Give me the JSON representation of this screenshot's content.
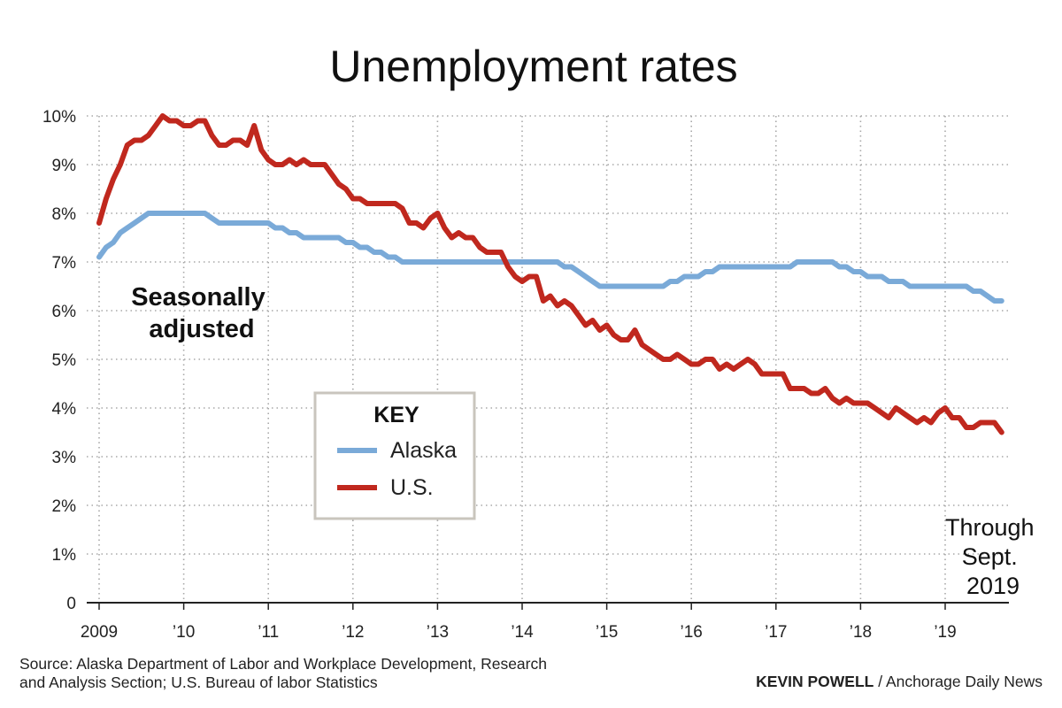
{
  "chart_data": {
    "type": "line",
    "title": "Unemployment rates",
    "annotation": [
      "Seasonally",
      "adjusted"
    ],
    "note": [
      "Through",
      "Sept.",
      "2019"
    ],
    "xlabel": "",
    "ylabel": "",
    "x_tick_labels": [
      "2009",
      "’10",
      "’11",
      "’12",
      "’13",
      "’14",
      "’15",
      "’16",
      "’17",
      "’18",
      "’19"
    ],
    "x_ticks": [
      2009,
      2010,
      2011,
      2012,
      2013,
      2014,
      2015,
      2016,
      2017,
      2018,
      2019
    ],
    "xlim": [
      2009,
      2019.75
    ],
    "y_tick_labels": [
      "0",
      "1%",
      "2%",
      "3%",
      "4%",
      "5%",
      "6%",
      "7%",
      "8%",
      "9%",
      "10%"
    ],
    "y_ticks": [
      0,
      1,
      2,
      3,
      4,
      5,
      6,
      7,
      8,
      9,
      10
    ],
    "ylim": [
      0,
      10
    ],
    "grid": "dotted",
    "legend": {
      "title": "KEY",
      "placement": "center"
    },
    "series": [
      {
        "name": "Alaska",
        "color": "#7aaad8",
        "points": [
          [
            2009.0,
            7.1
          ],
          [
            2009.083,
            7.3
          ],
          [
            2009.167,
            7.4
          ],
          [
            2009.25,
            7.6
          ],
          [
            2009.333,
            7.7
          ],
          [
            2009.417,
            7.8
          ],
          [
            2009.5,
            7.9
          ],
          [
            2009.583,
            8.0
          ],
          [
            2009.75,
            8.0
          ],
          [
            2010.0,
            8.0
          ],
          [
            2010.25,
            8.0
          ],
          [
            2010.333,
            7.9
          ],
          [
            2010.417,
            7.8
          ],
          [
            2010.75,
            7.8
          ],
          [
            2011.0,
            7.8
          ],
          [
            2011.083,
            7.7
          ],
          [
            2011.167,
            7.7
          ],
          [
            2011.25,
            7.6
          ],
          [
            2011.333,
            7.6
          ],
          [
            2011.417,
            7.5
          ],
          [
            2011.833,
            7.5
          ],
          [
            2011.917,
            7.4
          ],
          [
            2012.0,
            7.4
          ],
          [
            2012.083,
            7.3
          ],
          [
            2012.167,
            7.3
          ],
          [
            2012.25,
            7.2
          ],
          [
            2012.333,
            7.2
          ],
          [
            2012.417,
            7.1
          ],
          [
            2012.5,
            7.1
          ],
          [
            2012.583,
            7.0
          ],
          [
            2013.0,
            7.0
          ],
          [
            2014.0,
            7.0
          ],
          [
            2014.417,
            7.0
          ],
          [
            2014.5,
            6.9
          ],
          [
            2014.583,
            6.9
          ],
          [
            2014.667,
            6.8
          ],
          [
            2014.75,
            6.7
          ],
          [
            2014.833,
            6.6
          ],
          [
            2014.917,
            6.5
          ],
          [
            2015.0,
            6.5
          ],
          [
            2015.667,
            6.5
          ],
          [
            2015.75,
            6.6
          ],
          [
            2015.833,
            6.6
          ],
          [
            2015.917,
            6.7
          ],
          [
            2016.083,
            6.7
          ],
          [
            2016.167,
            6.8
          ],
          [
            2016.25,
            6.8
          ],
          [
            2016.333,
            6.9
          ],
          [
            2016.5,
            6.9
          ],
          [
            2017.0,
            6.9
          ],
          [
            2017.167,
            6.9
          ],
          [
            2017.25,
            7.0
          ],
          [
            2017.667,
            7.0
          ],
          [
            2017.75,
            6.9
          ],
          [
            2017.833,
            6.9
          ],
          [
            2017.917,
            6.8
          ],
          [
            2018.0,
            6.8
          ],
          [
            2018.083,
            6.7
          ],
          [
            2018.25,
            6.7
          ],
          [
            2018.333,
            6.6
          ],
          [
            2018.5,
            6.6
          ],
          [
            2018.583,
            6.5
          ],
          [
            2019.25,
            6.5
          ],
          [
            2019.333,
            6.4
          ],
          [
            2019.417,
            6.4
          ],
          [
            2019.5,
            6.3
          ],
          [
            2019.583,
            6.2
          ],
          [
            2019.667,
            6.2
          ]
        ]
      },
      {
        "name": "U.S.",
        "color": "#c0281e",
        "points": [
          [
            2009.0,
            7.8
          ],
          [
            2009.083,
            8.3
          ],
          [
            2009.167,
            8.7
          ],
          [
            2009.25,
            9.0
          ],
          [
            2009.333,
            9.4
          ],
          [
            2009.417,
            9.5
          ],
          [
            2009.5,
            9.5
          ],
          [
            2009.583,
            9.6
          ],
          [
            2009.667,
            9.8
          ],
          [
            2009.75,
            10.0
          ],
          [
            2009.833,
            9.9
          ],
          [
            2009.917,
            9.9
          ],
          [
            2010.0,
            9.8
          ],
          [
            2010.083,
            9.8
          ],
          [
            2010.167,
            9.9
          ],
          [
            2010.25,
            9.9
          ],
          [
            2010.333,
            9.6
          ],
          [
            2010.417,
            9.4
          ],
          [
            2010.5,
            9.4
          ],
          [
            2010.583,
            9.5
          ],
          [
            2010.667,
            9.5
          ],
          [
            2010.75,
            9.4
          ],
          [
            2010.833,
            9.8
          ],
          [
            2010.917,
            9.3
          ],
          [
            2011.0,
            9.1
          ],
          [
            2011.083,
            9.0
          ],
          [
            2011.167,
            9.0
          ],
          [
            2011.25,
            9.1
          ],
          [
            2011.333,
            9.0
          ],
          [
            2011.417,
            9.1
          ],
          [
            2011.5,
            9.0
          ],
          [
            2011.583,
            9.0
          ],
          [
            2011.667,
            9.0
          ],
          [
            2011.75,
            8.8
          ],
          [
            2011.833,
            8.6
          ],
          [
            2011.917,
            8.5
          ],
          [
            2012.0,
            8.3
          ],
          [
            2012.083,
            8.3
          ],
          [
            2012.167,
            8.2
          ],
          [
            2012.25,
            8.2
          ],
          [
            2012.333,
            8.2
          ],
          [
            2012.417,
            8.2
          ],
          [
            2012.5,
            8.2
          ],
          [
            2012.583,
            8.1
          ],
          [
            2012.667,
            7.8
          ],
          [
            2012.75,
            7.8
          ],
          [
            2012.833,
            7.7
          ],
          [
            2012.917,
            7.9
          ],
          [
            2013.0,
            8.0
          ],
          [
            2013.083,
            7.7
          ],
          [
            2013.167,
            7.5
          ],
          [
            2013.25,
            7.6
          ],
          [
            2013.333,
            7.5
          ],
          [
            2013.417,
            7.5
          ],
          [
            2013.5,
            7.3
          ],
          [
            2013.583,
            7.2
          ],
          [
            2013.667,
            7.2
          ],
          [
            2013.75,
            7.2
          ],
          [
            2013.833,
            6.9
          ],
          [
            2013.917,
            6.7
          ],
          [
            2014.0,
            6.6
          ],
          [
            2014.083,
            6.7
          ],
          [
            2014.167,
            6.7
          ],
          [
            2014.25,
            6.2
          ],
          [
            2014.333,
            6.3
          ],
          [
            2014.417,
            6.1
          ],
          [
            2014.5,
            6.2
          ],
          [
            2014.583,
            6.1
          ],
          [
            2014.667,
            5.9
          ],
          [
            2014.75,
            5.7
          ],
          [
            2014.833,
            5.8
          ],
          [
            2014.917,
            5.6
          ],
          [
            2015.0,
            5.7
          ],
          [
            2015.083,
            5.5
          ],
          [
            2015.167,
            5.4
          ],
          [
            2015.25,
            5.4
          ],
          [
            2015.333,
            5.6
          ],
          [
            2015.417,
            5.3
          ],
          [
            2015.5,
            5.2
          ],
          [
            2015.583,
            5.1
          ],
          [
            2015.667,
            5.0
          ],
          [
            2015.75,
            5.0
          ],
          [
            2015.833,
            5.1
          ],
          [
            2015.917,
            5.0
          ],
          [
            2016.0,
            4.9
          ],
          [
            2016.083,
            4.9
          ],
          [
            2016.167,
            5.0
          ],
          [
            2016.25,
            5.0
          ],
          [
            2016.333,
            4.8
          ],
          [
            2016.417,
            4.9
          ],
          [
            2016.5,
            4.8
          ],
          [
            2016.583,
            4.9
          ],
          [
            2016.667,
            5.0
          ],
          [
            2016.75,
            4.9
          ],
          [
            2016.833,
            4.7
          ],
          [
            2016.917,
            4.7
          ],
          [
            2017.0,
            4.7
          ],
          [
            2017.083,
            4.7
          ],
          [
            2017.167,
            4.4
          ],
          [
            2017.25,
            4.4
          ],
          [
            2017.333,
            4.4
          ],
          [
            2017.417,
            4.3
          ],
          [
            2017.5,
            4.3
          ],
          [
            2017.583,
            4.4
          ],
          [
            2017.667,
            4.2
          ],
          [
            2017.75,
            4.1
          ],
          [
            2017.833,
            4.2
          ],
          [
            2017.917,
            4.1
          ],
          [
            2018.0,
            4.1
          ],
          [
            2018.083,
            4.1
          ],
          [
            2018.167,
            4.0
          ],
          [
            2018.25,
            3.9
          ],
          [
            2018.333,
            3.8
          ],
          [
            2018.417,
            4.0
          ],
          [
            2018.5,
            3.9
          ],
          [
            2018.583,
            3.8
          ],
          [
            2018.667,
            3.7
          ],
          [
            2018.75,
            3.8
          ],
          [
            2018.833,
            3.7
          ],
          [
            2018.917,
            3.9
          ],
          [
            2019.0,
            4.0
          ],
          [
            2019.083,
            3.8
          ],
          [
            2019.167,
            3.8
          ],
          [
            2019.25,
            3.6
          ],
          [
            2019.333,
            3.6
          ],
          [
            2019.417,
            3.7
          ],
          [
            2019.5,
            3.7
          ],
          [
            2019.583,
            3.7
          ],
          [
            2019.667,
            3.5
          ]
        ]
      }
    ]
  },
  "source": "Source: Alaska Department of Labor and Workplace Development, Research and Analysis Section; U.S. Bureau of labor Statistics",
  "credit_author": "KEVIN POWELL",
  "credit_outlet": " / Anchorage Daily News"
}
